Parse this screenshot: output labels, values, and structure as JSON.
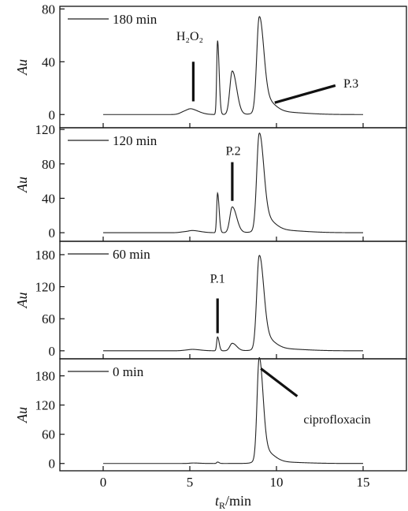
{
  "chart_data": {
    "type": "line",
    "xlabel": {
      "main": "t",
      "sub": "R",
      "rest": "/min"
    },
    "xlim": [
      -2.5,
      17.5
    ],
    "xticks": [
      0,
      5,
      10,
      15
    ],
    "panels": [
      {
        "legend": "180 min",
        "ylabel": "Au",
        "ylim": [
          -10,
          82
        ],
        "yticks": [
          0,
          40,
          80
        ],
        "peaks": [
          [
            4.7,
            2,
            0.25
          ],
          [
            5.1,
            3,
            0.25
          ],
          [
            6.6,
            56,
            0.05
          ],
          [
            7.45,
            33,
            0.14
          ],
          [
            9.0,
            67,
            0.14
          ],
          [
            9.3,
            10,
            0.3
          ],
          [
            10.0,
            2,
            0.8
          ]
        ],
        "annotations": [
          {
            "text": "H₂O₂",
            "text_x": 5.0,
            "text_y": 60,
            "line": [
              [
                5.2,
                10
              ],
              [
                5.2,
                40
              ]
            ]
          },
          {
            "text": "P.3",
            "text_x": 14.3,
            "text_y": 24,
            "line": [
              [
                9.9,
                9
              ],
              [
                13.4,
                22
              ]
            ]
          }
        ]
      },
      {
        "legend": "120 min",
        "ylabel": "Au",
        "ylim": [
          -10,
          122
        ],
        "yticks": [
          0,
          40,
          80,
          120
        ],
        "peaks": [
          [
            4.7,
            1,
            0.25
          ],
          [
            5.2,
            2,
            0.25
          ],
          [
            6.6,
            46,
            0.05
          ],
          [
            7.45,
            30,
            0.14
          ],
          [
            9.0,
            105,
            0.14
          ],
          [
            9.3,
            15,
            0.3
          ],
          [
            10.0,
            3,
            0.8
          ]
        ],
        "annotations": [
          {
            "text": "P.2",
            "text_x": 7.5,
            "text_y": 96,
            "line": [
              [
                7.45,
                37
              ],
              [
                7.45,
                82
              ]
            ]
          }
        ]
      },
      {
        "legend": "60 min",
        "ylabel": "Au",
        "ylim": [
          -15,
          205
        ],
        "yticks": [
          0,
          60,
          120,
          180
        ],
        "peaks": [
          [
            4.8,
            1,
            0.25
          ],
          [
            5.2,
            2,
            0.25
          ],
          [
            6.6,
            26,
            0.05
          ],
          [
            7.45,
            14,
            0.14
          ],
          [
            9.0,
            163,
            0.14
          ],
          [
            9.3,
            22,
            0.3
          ],
          [
            10.0,
            4,
            0.8
          ]
        ],
        "annotations": [
          {
            "text": "P.1",
            "text_x": 6.6,
            "text_y": 136,
            "line": [
              [
                6.6,
                33
              ],
              [
                6.6,
                98
              ]
            ]
          }
        ]
      },
      {
        "legend": "0 min",
        "ylabel": "Au",
        "ylim": [
          -15,
          215
        ],
        "yticks": [
          0,
          60,
          120,
          180
        ],
        "peaks": [
          [
            5.2,
            1,
            0.2
          ],
          [
            6.6,
            3,
            0.05
          ],
          [
            9.0,
            198,
            0.12
          ],
          [
            9.25,
            25,
            0.3
          ],
          [
            10.0,
            3,
            0.8
          ]
        ],
        "annotations": [
          {
            "text": "ciprofloxacin",
            "text_x": 13.5,
            "text_y": 92,
            "line": [
              [
                9.1,
                195
              ],
              [
                11.2,
                138
              ]
            ]
          }
        ]
      }
    ]
  }
}
